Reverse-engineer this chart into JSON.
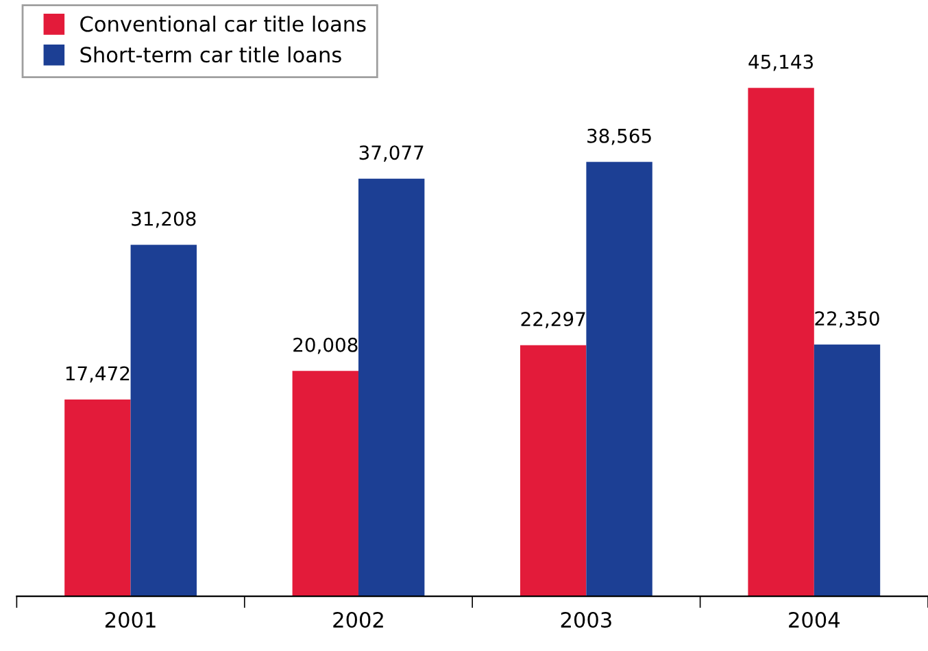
{
  "chart_data": {
    "type": "bar",
    "categories": [
      "2001",
      "2002",
      "2003",
      "2004"
    ],
    "series": [
      {
        "name": "Conventional car title loans",
        "color": "#e31b3a",
        "values": [
          17472,
          20008,
          22297,
          45143
        ],
        "value_labels": [
          "17,472",
          "20,008",
          "22,297",
          "45,143"
        ]
      },
      {
        "name": "Short-term car title loans",
        "color": "#1c3f94",
        "values": [
          31208,
          37077,
          38565,
          22350
        ],
        "value_labels": [
          "31,208",
          "37,077",
          "38,565",
          "22,350"
        ]
      }
    ],
    "legend": "top left",
    "grid": false
  }
}
